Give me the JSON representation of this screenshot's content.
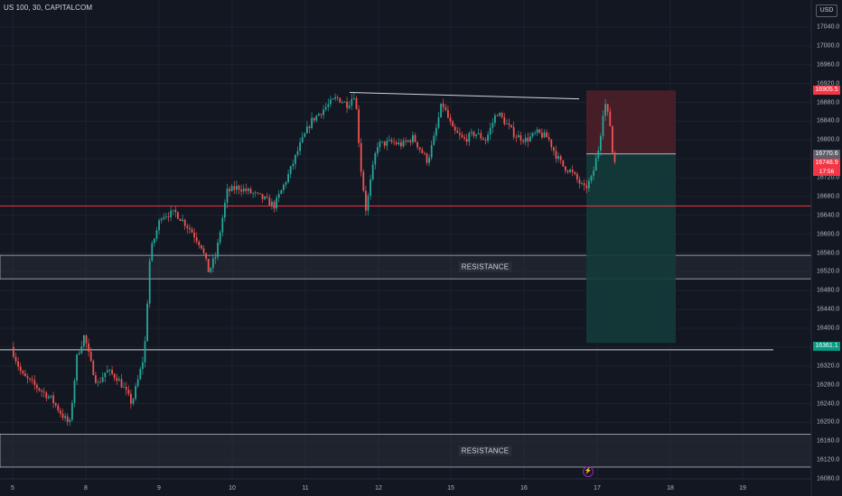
{
  "header": {
    "symbol_line": "US 100, 30, CAPITALCOM",
    "currency_button": "USD"
  },
  "chart_data": {
    "type": "candlestick",
    "symbol": "US 100",
    "interval": "30",
    "source": "CAPITALCOM",
    "y_axis": {
      "range": [
        16080,
        17080
      ],
      "ticks": [
        17040,
        17000,
        16960,
        16920,
        16880,
        16840,
        16800,
        16760,
        16720,
        16680,
        16640,
        16600,
        16560,
        16520,
        16480,
        16440,
        16400,
        16360,
        16320,
        16280,
        16240,
        16200,
        16160,
        16120,
        16080
      ],
      "tick_labels": [
        "17040.0",
        "17000.0",
        "16960.0",
        "16920.0",
        "16880.0",
        "16840.0",
        "16800.0",
        "16760.0",
        "16720.0",
        "16680.0",
        "16640.0",
        "16600.0",
        "16560.0",
        "16520.0",
        "16480.0",
        "16440.0",
        "16400.0",
        "16360.0",
        "16320.0",
        "16280.0",
        "16240.0",
        "16200.0",
        "16160.0",
        "16120.0",
        "16080.0"
      ]
    },
    "x_axis": {
      "days": [
        {
          "label": "5",
          "day": 5
        },
        {
          "label": "8",
          "day": 8
        },
        {
          "label": "9",
          "day": 9
        },
        {
          "label": "10",
          "day": 10
        },
        {
          "label": "11",
          "day": 11
        },
        {
          "label": "12",
          "day": 12
        },
        {
          "label": "15",
          "day": 15
        },
        {
          "label": "16",
          "day": 16
        },
        {
          "label": "17",
          "day": 17
        },
        {
          "label": "18",
          "day": 18
        },
        {
          "label": "19",
          "day": 19
        }
      ]
    },
    "price_path": [
      [
        4.95,
        16360
      ],
      [
        5.15,
        16300
      ],
      [
        5.35,
        16275
      ],
      [
        5.55,
        16250
      ],
      [
        5.7,
        16215
      ],
      [
        5.8,
        16195
      ],
      [
        5.9,
        16340
      ],
      [
        6.0,
        16385
      ],
      [
        6.08,
        16330
      ],
      [
        6.18,
        16280
      ],
      [
        6.3,
        16310
      ],
      [
        6.45,
        16295
      ],
      [
        6.55,
        16270
      ],
      [
        6.65,
        16240
      ],
      [
        6.75,
        16300
      ],
      [
        6.82,
        16345
      ],
      [
        6.9,
        16560
      ],
      [
        7.05,
        16640
      ],
      [
        7.25,
        16645
      ],
      [
        7.45,
        16610
      ],
      [
        7.6,
        16575
      ],
      [
        7.7,
        16520
      ],
      [
        7.8,
        16555
      ],
      [
        7.95,
        16690
      ],
      [
        8.1,
        16700
      ],
      [
        8.25,
        16690
      ],
      [
        8.45,
        16675
      ],
      [
        8.6,
        16660
      ],
      [
        8.8,
        16730
      ],
      [
        8.95,
        16790
      ],
      [
        9.1,
        16840
      ],
      [
        9.3,
        16870
      ],
      [
        9.45,
        16890
      ],
      [
        9.6,
        16875
      ],
      [
        9.7,
        16900
      ],
      [
        9.78,
        16740
      ],
      [
        9.85,
        16650
      ],
      [
        9.92,
        16720
      ],
      [
        10.0,
        16790
      ],
      [
        10.2,
        16795
      ],
      [
        10.35,
        16790
      ],
      [
        10.5,
        16805
      ],
      [
        10.6,
        16780
      ],
      [
        10.7,
        16755
      ],
      [
        10.8,
        16810
      ],
      [
        10.9,
        16880
      ],
      [
        11.05,
        16820
      ],
      [
        11.2,
        16800
      ],
      [
        11.35,
        16815
      ],
      [
        11.5,
        16800
      ],
      [
        11.65,
        16860
      ],
      [
        11.75,
        16840
      ],
      [
        11.9,
        16810
      ],
      [
        12.05,
        16800
      ],
      [
        12.2,
        16815
      ],
      [
        12.35,
        16805
      ],
      [
        12.45,
        16770
      ],
      [
        12.55,
        16745
      ],
      [
        12.65,
        16735
      ],
      [
        12.75,
        16715
      ],
      [
        12.85,
        16695
      ],
      [
        12.95,
        16720
      ],
      [
        13.05,
        16790
      ],
      [
        13.12,
        16885
      ],
      [
        13.2,
        16830
      ],
      [
        13.24,
        16755
      ]
    ],
    "current_price": 16748.9,
    "countdown": "17:56",
    "horizontal_lines": [
      {
        "price": 16660,
        "color": "#f23645"
      },
      {
        "price": 16360,
        "color": "#d1d4dc"
      }
    ],
    "trendline": {
      "from": [
        11.6,
        16905
      ],
      "to": [
        13.18,
        16895
      ],
      "color": "#d1d4dc"
    },
    "zones": [
      {
        "label": "RESISTANCE",
        "top": 16555,
        "bottom": 16505
      },
      {
        "label": "RESISTANCE",
        "top": 16175,
        "bottom": 16105
      }
    ],
    "position": {
      "type": "short",
      "entry": 16770.6,
      "stop": 16905.5,
      "target": 16361.1,
      "x_from": 13.25,
      "x_to": 14.5,
      "stop_color": "#4c1f28",
      "target_color": "#143a3a"
    },
    "price_tags": [
      {
        "label": "16905.5",
        "price": 16905.5,
        "color": "#f23645"
      },
      {
        "label": "16770.6",
        "price": 16770.6,
        "color": "#5d606b"
      },
      {
        "label": "16748.9",
        "price": 16748.9,
        "color": "#f23645"
      },
      {
        "label": "16361.1",
        "price": 16361.1,
        "color": "#089981"
      }
    ],
    "colors": {
      "up": "#26a69a",
      "down": "#ef5350",
      "grid": "#1e222d",
      "background": "#131722"
    }
  }
}
